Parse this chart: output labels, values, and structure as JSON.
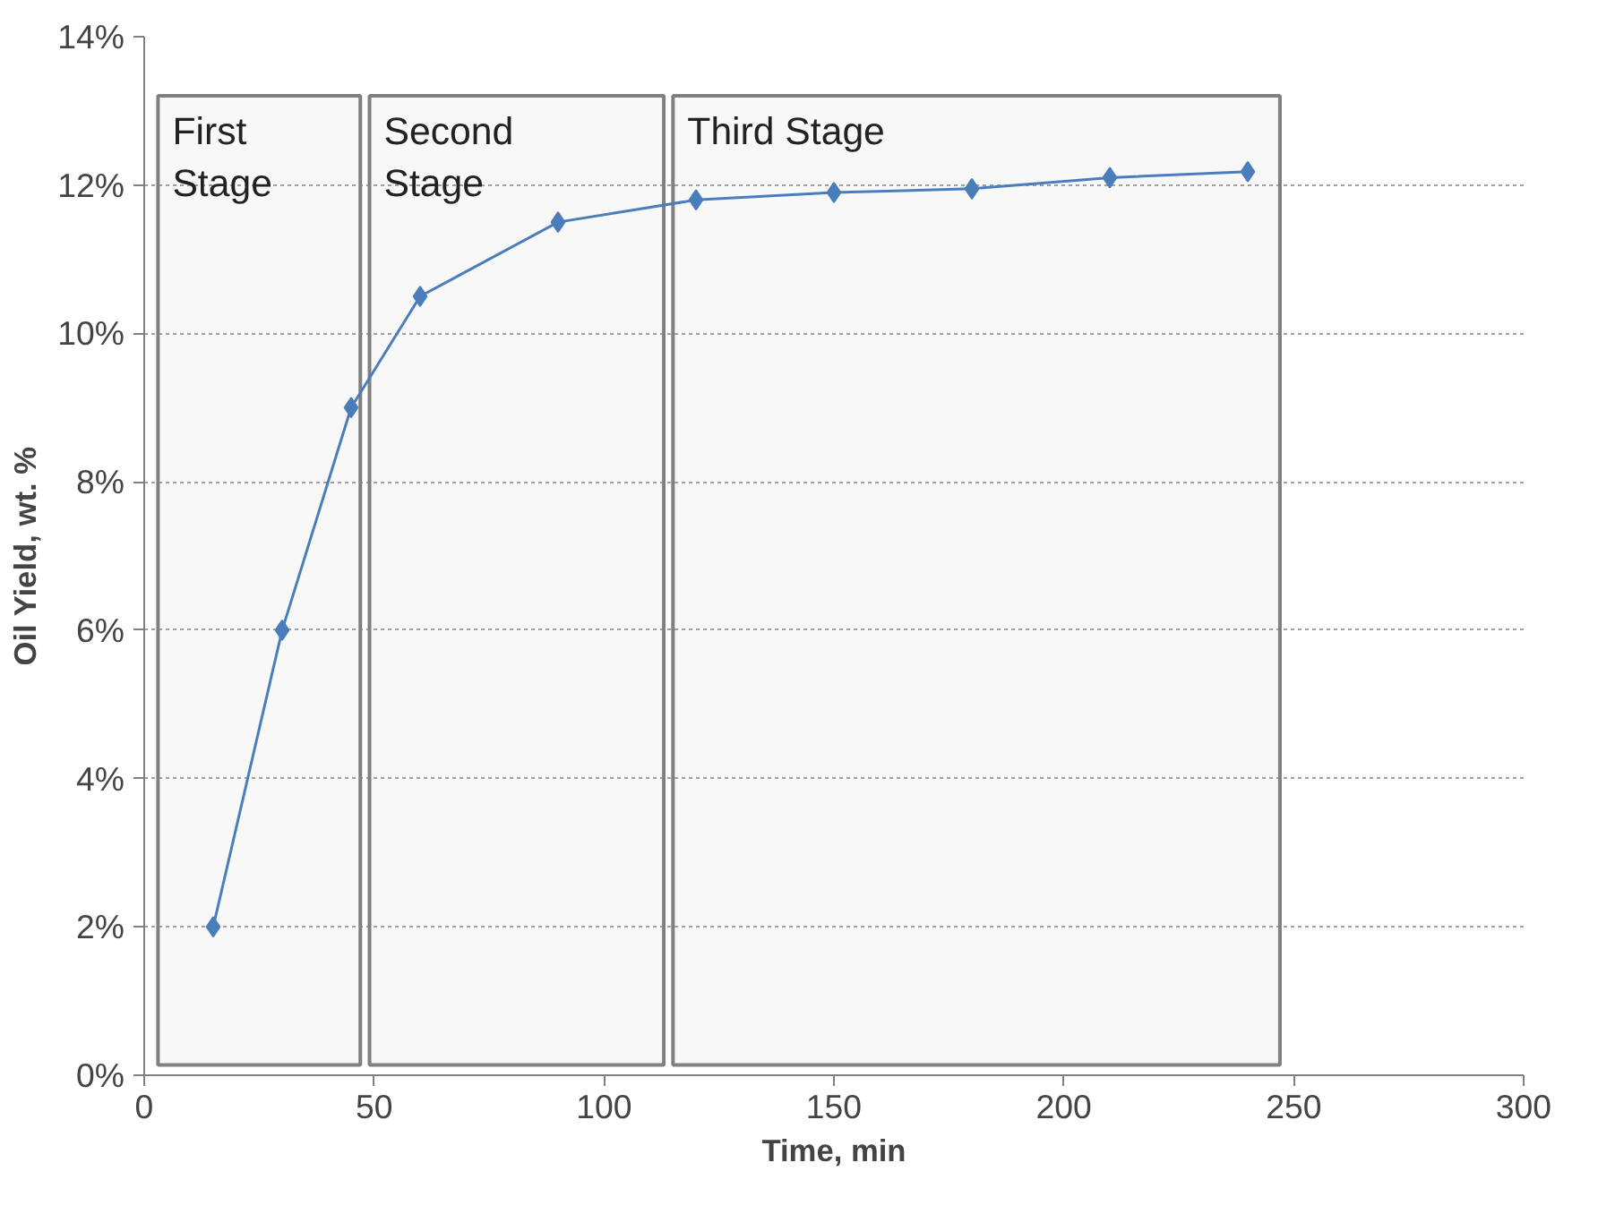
{
  "chart_data": {
    "type": "line",
    "xlabel": "Time, min",
    "ylabel": "Oil Yield, wt. %",
    "x": [
      15,
      30,
      45,
      60,
      90,
      120,
      150,
      180,
      210,
      240
    ],
    "series": [
      {
        "color": "#4a7ebb",
        "values": [
          2,
          6,
          9,
          10.5,
          11.5,
          11.8,
          11.9,
          11.95,
          12.1,
          12.18
        ]
      }
    ],
    "xlim": [
      0,
      300
    ],
    "xticks": [
      0,
      50,
      100,
      150,
      200,
      250,
      300
    ],
    "ylim": [
      0,
      14
    ],
    "yticks": [
      {
        "value": 0,
        "label": "0%"
      },
      {
        "value": 2,
        "label": "2%"
      },
      {
        "value": 4,
        "label": "4%"
      },
      {
        "value": 6,
        "label": "6%"
      },
      {
        "value": 8,
        "label": "8%"
      },
      {
        "value": 10,
        "label": "10%"
      },
      {
        "value": 12,
        "label": "12%"
      },
      {
        "value": 14,
        "label": "14%"
      }
    ],
    "grid": "y",
    "marker": "diamond",
    "line_style": "solid",
    "bands": [
      {
        "axis": "x",
        "from": 3,
        "to": 47,
        "label": "First Stage",
        "color": "#808080"
      },
      {
        "axis": "x",
        "from": 49,
        "to": 113,
        "label": "Second Stage",
        "color": "#808080"
      },
      {
        "axis": "x",
        "from": 115,
        "to": 247,
        "label": "Third Stage",
        "color": "#808080"
      }
    ]
  }
}
